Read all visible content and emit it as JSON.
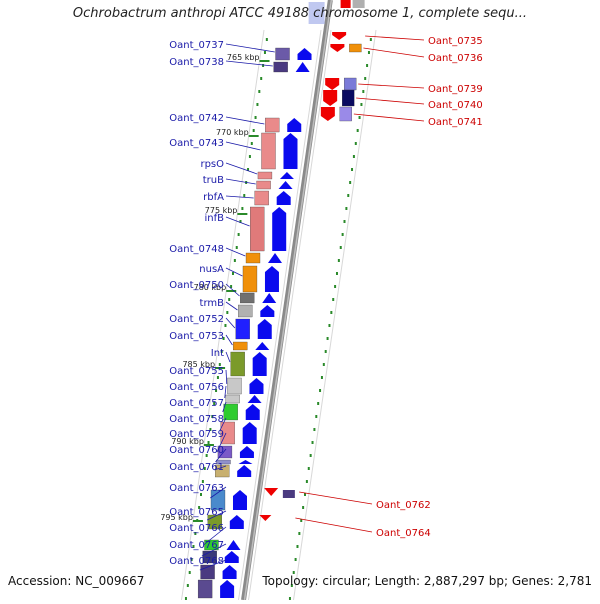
{
  "header": {
    "title": "Ochrobactrum anthropi ATCC 49188 chromosome 1, complete sequ..."
  },
  "footer": {
    "accession": "Accession: NC_009667",
    "summary": "Topology: circular; Length: 2,887,297 bp; Genes: 2,781"
  },
  "colors": {
    "left_label": "#1a1aa8",
    "right_label": "#cc0000",
    "forward_gene": "#0a0aee",
    "reverse_gene": "#ee0000",
    "tick": "#2a8a2a",
    "backbone": "#8a8a8a"
  },
  "scale_ticks": [
    "765 kbp",
    "770 kbp",
    "775 kbp",
    "780 kbp",
    "785 kbp",
    "790 kbp",
    "795 kbp"
  ],
  "left_genes": [
    "Oant_0737",
    "Oant_0738",
    "Oant_0742",
    "Oant_0743",
    "rpsO",
    "truB",
    "rbfA",
    "infB",
    "Oant_0748",
    "nusA",
    "Oant_0750",
    "trmB",
    "Oant_0752",
    "Oant_0753",
    "Int",
    "Oant_0755",
    "Oant_0756",
    "Oant_0757",
    "Oant_0758",
    "Oant_0759",
    "Oant_0760",
    "Oant_0761",
    "Oant_0763",
    "Oant_0765",
    "Oant_0766",
    "Oant_0767",
    "Oant_0768"
  ],
  "right_genes": [
    "Oant_0735",
    "Oant_0736",
    "Oant_0739",
    "Oant_0740",
    "Oant_0741",
    "Oant_0762",
    "Oant_0764"
  ]
}
